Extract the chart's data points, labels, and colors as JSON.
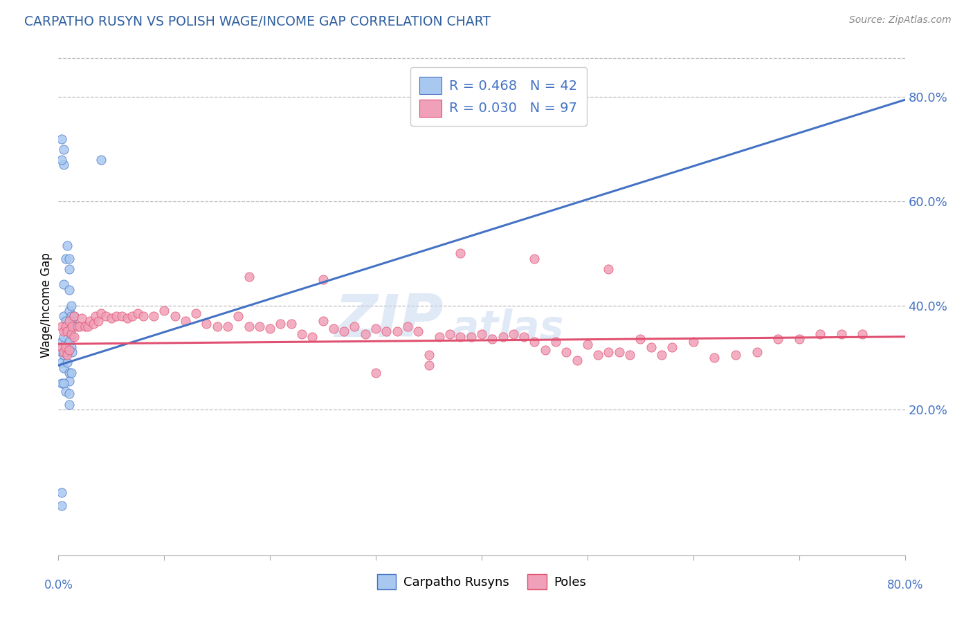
{
  "title": "CARPATHO RUSYN VS POLISH WAGE/INCOME GAP CORRELATION CHART",
  "source_text": "Source: ZipAtlas.com",
  "ylabel": "Wage/Income Gap",
  "xmin": 0.0,
  "xmax": 0.8,
  "ymin": -0.08,
  "ymax": 0.88,
  "right_yticks": [
    0.2,
    0.4,
    0.6,
    0.8
  ],
  "right_ytick_labels": [
    "20.0%",
    "40.0%",
    "60.0%",
    "80.0%"
  ],
  "legend_r1": "0.468",
  "legend_n1": "42",
  "legend_r2": "0.030",
  "legend_n2": "97",
  "blue_color": "#A8C8F0",
  "pink_color": "#F0A0B8",
  "blue_line_color": "#4472C4",
  "pink_line_color": "#E05070",
  "legend_text_color": "#4472C4",
  "title_color": "#3060A0",
  "source_color": "#888888",
  "background_color": "#FFFFFF",
  "grid_color": "#BBBBBB",
  "watermark_color": "#C8D8F0",
  "blue_trend_x": [
    0.0,
    0.8
  ],
  "blue_trend_y": [
    0.285,
    0.795
  ],
  "pink_trend_x": [
    0.0,
    0.8
  ],
  "pink_trend_y": [
    0.326,
    0.34
  ],
  "cr_x": [
    0.003,
    0.005,
    0.005,
    0.007,
    0.008,
    0.01,
    0.01,
    0.01,
    0.01,
    0.01,
    0.012,
    0.012,
    0.012,
    0.013,
    0.015,
    0.015,
    0.003,
    0.005,
    0.007,
    0.008,
    0.01,
    0.012,
    0.013,
    0.003,
    0.005,
    0.005,
    0.008,
    0.01,
    0.01,
    0.012,
    0.003,
    0.005,
    0.007,
    0.01,
    0.01,
    0.005,
    0.005,
    0.003,
    0.003,
    0.04,
    0.003,
    0.003
  ],
  "cr_y": [
    0.33,
    0.38,
    0.44,
    0.49,
    0.515,
    0.49,
    0.47,
    0.43,
    0.39,
    0.35,
    0.4,
    0.38,
    0.34,
    0.37,
    0.38,
    0.36,
    0.31,
    0.34,
    0.37,
    0.31,
    0.33,
    0.32,
    0.31,
    0.29,
    0.28,
    0.305,
    0.29,
    0.27,
    0.255,
    0.27,
    0.25,
    0.25,
    0.235,
    0.23,
    0.21,
    0.7,
    0.67,
    0.68,
    0.72,
    0.68,
    0.04,
    0.015
  ],
  "po_x": [
    0.003,
    0.003,
    0.005,
    0.005,
    0.007,
    0.007,
    0.008,
    0.008,
    0.01,
    0.01,
    0.012,
    0.013,
    0.015,
    0.015,
    0.018,
    0.02,
    0.022,
    0.025,
    0.028,
    0.03,
    0.033,
    0.035,
    0.038,
    0.04,
    0.045,
    0.05,
    0.055,
    0.06,
    0.065,
    0.07,
    0.075,
    0.08,
    0.09,
    0.1,
    0.11,
    0.12,
    0.13,
    0.14,
    0.15,
    0.16,
    0.17,
    0.18,
    0.19,
    0.2,
    0.21,
    0.22,
    0.23,
    0.24,
    0.25,
    0.26,
    0.27,
    0.28,
    0.29,
    0.3,
    0.31,
    0.32,
    0.33,
    0.34,
    0.35,
    0.36,
    0.37,
    0.38,
    0.39,
    0.4,
    0.41,
    0.42,
    0.43,
    0.44,
    0.45,
    0.46,
    0.47,
    0.48,
    0.49,
    0.5,
    0.51,
    0.52,
    0.53,
    0.54,
    0.55,
    0.56,
    0.57,
    0.58,
    0.6,
    0.62,
    0.64,
    0.66,
    0.68,
    0.7,
    0.72,
    0.74,
    0.76,
    0.38,
    0.45,
    0.52,
    0.18,
    0.25,
    0.35,
    0.3
  ],
  "po_y": [
    0.36,
    0.32,
    0.35,
    0.31,
    0.36,
    0.32,
    0.35,
    0.305,
    0.37,
    0.315,
    0.345,
    0.36,
    0.34,
    0.38,
    0.36,
    0.36,
    0.375,
    0.36,
    0.36,
    0.37,
    0.365,
    0.38,
    0.37,
    0.385,
    0.38,
    0.375,
    0.38,
    0.38,
    0.375,
    0.38,
    0.385,
    0.38,
    0.38,
    0.39,
    0.38,
    0.37,
    0.385,
    0.365,
    0.36,
    0.36,
    0.38,
    0.36,
    0.36,
    0.355,
    0.365,
    0.365,
    0.345,
    0.34,
    0.37,
    0.355,
    0.35,
    0.36,
    0.345,
    0.355,
    0.35,
    0.35,
    0.36,
    0.35,
    0.305,
    0.34,
    0.345,
    0.34,
    0.34,
    0.345,
    0.335,
    0.34,
    0.345,
    0.34,
    0.33,
    0.315,
    0.33,
    0.31,
    0.295,
    0.325,
    0.305,
    0.31,
    0.31,
    0.305,
    0.335,
    0.32,
    0.305,
    0.32,
    0.33,
    0.3,
    0.305,
    0.31,
    0.335,
    0.335,
    0.345,
    0.345,
    0.345,
    0.5,
    0.49,
    0.47,
    0.455,
    0.45,
    0.285,
    0.27
  ]
}
